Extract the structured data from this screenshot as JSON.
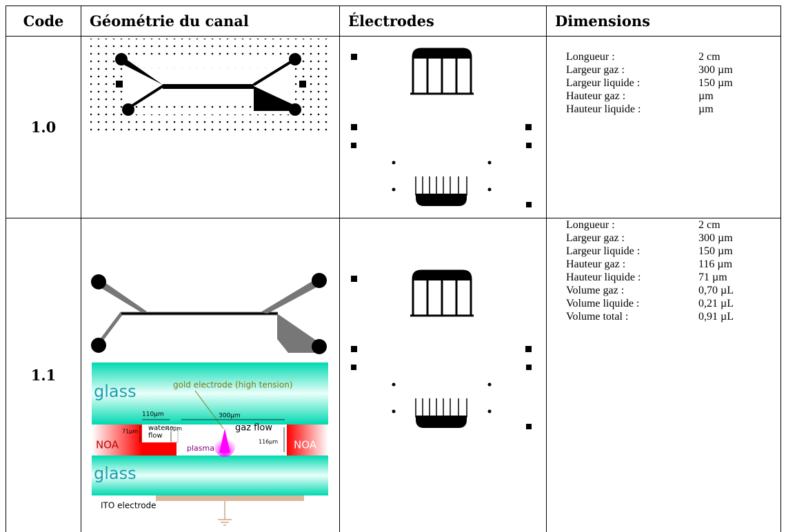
{
  "header": [
    "Code",
    "Géométrie du canal",
    "Électrodes",
    "Dimensions"
  ],
  "rows": [
    {
      "code": "1.0",
      "dimensions": [
        [
          "Longueur :",
          "2 cm"
        ],
        [
          "Largeur gaz :",
          "300 µm"
        ],
        [
          "Largeur liquide :",
          "150 µm"
        ],
        [
          "Hauteur gaz :",
          "µm"
        ],
        [
          "Hauteur liquide :",
          "µm"
        ]
      ]
    },
    {
      "code": "1.1",
      "dimensions": [
        [
          "Longueur :",
          "2 cm"
        ],
        [
          "Largeur gaz :",
          "300 µm"
        ],
        [
          "Largeur liquide :",
          "150 µm"
        ],
        [
          "Hauteur gaz :",
          "116 µm"
        ],
        [
          "Hauteur liquide :",
          "71 µm"
        ],
        [
          "Volume gaz :",
          "0,70 µL"
        ],
        [
          "Volume liquide :",
          "0,21 µL"
        ],
        [
          "Volume total :",
          "0,91 µL"
        ]
      ],
      "cross_section": {
        "glass_top": "glass",
        "electrode": "gold electrode (high tension)",
        "width_liquid": "110µm",
        "width_gas": "300µm",
        "height_liquid": "71µm",
        "liquid": [
          "water",
          "flow"
        ],
        "gap": "40µm",
        "gas": "gaz flow",
        "noa_left": "NOA",
        "height_gas": "116µm",
        "noa_right": "NOA",
        "plasma": "plasma",
        "glass_bottom": "glass",
        "ito": "ITO electrode"
      }
    }
  ]
}
